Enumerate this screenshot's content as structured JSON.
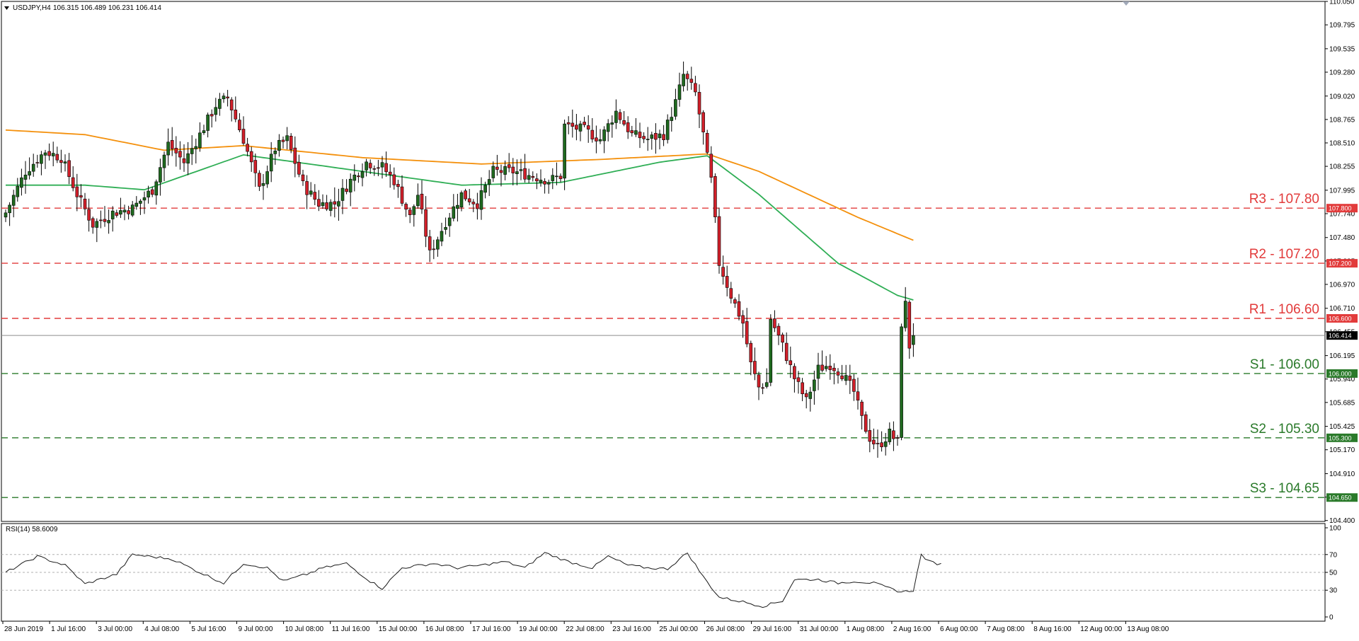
{
  "header": {
    "title": "USDJPY,H4",
    "ohlc": "106.315 106.489 106.231 106.414"
  },
  "colors": {
    "background": "#ffffff",
    "bull": "#1f6a1f",
    "bear": "#d2202a",
    "ma_slow": "#f4900c",
    "ma_fast": "#2fae55",
    "resistance": "#e23b3b",
    "support": "#2a7a2a",
    "price_line": "#8c8c8c",
    "rsi_line": "#1a1a1a"
  },
  "icons": {
    "menu_marker": "triangle-down-icon"
  },
  "chart_data": [
    {
      "type": "candlestick",
      "title": "USDJPY,H4",
      "ylim": [
        104.39,
        110.05
      ],
      "y_ticks": [
        "110.050",
        "109.795",
        "109.535",
        "109.280",
        "109.020",
        "108.765",
        "108.510",
        "108.255",
        "107.995",
        "107.740",
        "107.480",
        "107.225",
        "106.970",
        "106.710",
        "106.455",
        "106.195",
        "105.940",
        "105.685",
        "105.425",
        "105.170",
        "104.910",
        "104.655",
        "104.400"
      ],
      "x_labels": [
        "28 Jun 2019",
        "1 Jul 16:00",
        "3 Jul 00:00",
        "4 Jul 08:00",
        "5 Jul 16:00",
        "9 Jul 00:00",
        "10 Jul 08:00",
        "11 Jul 16:00",
        "15 Jul 00:00",
        "16 Jul 08:00",
        "17 Jul 16:00",
        "19 Jul 00:00",
        "22 Jul 08:00",
        "23 Jul 16:00",
        "25 Jul 00:00",
        "26 Jul 08:00",
        "29 Jul 16:00",
        "31 Jul 00:00",
        "1 Aug 08:00",
        "2 Aug 16:00",
        "6 Aug 00:00",
        "7 Aug 08:00",
        "8 Aug 16:00",
        "12 Aug 00:00",
        "13 Aug 08:00"
      ],
      "current_price": 106.414,
      "current_price_label": "106.414",
      "levels": [
        {
          "name": "R3",
          "value": 107.8,
          "label": "R3 - 107.80",
          "tag": "107.800",
          "kind": "resistance"
        },
        {
          "name": "R2",
          "value": 107.2,
          "label": "R2 - 107.20",
          "tag": "107.200",
          "kind": "resistance"
        },
        {
          "name": "R1",
          "value": 106.6,
          "label": "R1 - 106.60",
          "tag": "106.600",
          "kind": "resistance"
        },
        {
          "name": "S1",
          "value": 106.0,
          "label": "S1 - 106.00",
          "tag": "106.000",
          "kind": "support"
        },
        {
          "name": "S2",
          "value": 105.3,
          "label": "S2 - 105.30",
          "tag": "105.300",
          "kind": "support"
        },
        {
          "name": "S3",
          "value": 104.65,
          "label": "S3 - 104.65",
          "tag": "104.650",
          "kind": "support"
        }
      ],
      "close_anchors": [
        [
          0,
          107.75
        ],
        [
          5,
          108.2
        ],
        [
          10,
          108.42
        ],
        [
          14,
          108.35
        ],
        [
          18,
          107.95
        ],
        [
          22,
          107.62
        ],
        [
          27,
          107.75
        ],
        [
          32,
          107.8
        ],
        [
          37,
          108.0
        ],
        [
          41,
          108.5
        ],
        [
          45,
          108.3
        ],
        [
          49,
          108.6
        ],
        [
          53,
          108.92
        ],
        [
          56,
          109.0
        ],
        [
          60,
          108.55
        ],
        [
          64,
          108.0
        ],
        [
          68,
          108.45
        ],
        [
          71,
          108.55
        ],
        [
          75,
          108.05
        ],
        [
          79,
          107.85
        ],
        [
          83,
          107.85
        ],
        [
          87,
          108.1
        ],
        [
          91,
          108.3
        ],
        [
          95,
          108.25
        ],
        [
          98,
          108.1
        ],
        [
          102,
          107.7
        ],
        [
          104,
          107.95
        ],
        [
          107,
          107.3
        ],
        [
          111,
          107.65
        ],
        [
          115,
          107.95
        ],
        [
          119,
          107.85
        ],
        [
          123,
          108.2
        ],
        [
          128,
          108.2
        ],
        [
          133,
          108.15
        ],
        [
          137,
          108.1
        ],
        [
          140,
          108.15
        ],
        [
          141,
          108.7
        ],
        [
          146,
          108.65
        ],
        [
          150,
          108.55
        ],
        [
          154,
          108.85
        ],
        [
          158,
          108.6
        ],
        [
          162,
          108.55
        ],
        [
          166,
          108.6
        ],
        [
          169,
          108.95
        ],
        [
          171,
          109.25
        ],
        [
          174,
          109.05
        ],
        [
          176,
          108.6
        ],
        [
          178,
          108.1
        ],
        [
          180,
          107.2
        ],
        [
          183,
          106.85
        ],
        [
          186,
          106.55
        ],
        [
          188,
          106.1
        ],
        [
          190,
          105.85
        ],
        [
          192,
          105.9
        ],
        [
          193,
          106.6
        ],
        [
          196,
          106.3
        ],
        [
          199,
          105.95
        ],
        [
          202,
          105.7
        ],
        [
          205,
          106.05
        ],
        [
          208,
          106.1
        ],
        [
          211,
          106.0
        ],
        [
          214,
          105.8
        ],
        [
          216,
          105.5
        ],
        [
          218,
          105.3
        ],
        [
          220,
          105.2
        ],
        [
          223,
          105.35
        ],
        [
          225,
          105.25
        ],
        [
          226,
          106.55
        ],
        [
          227,
          106.75
        ],
        [
          228,
          106.3
        ],
        [
          229,
          106.414
        ]
      ],
      "ma_slow_anchors": [
        [
          0,
          108.65
        ],
        [
          20,
          108.6
        ],
        [
          40,
          108.43
        ],
        [
          60,
          108.48
        ],
        [
          90,
          108.35
        ],
        [
          120,
          108.28
        ],
        [
          150,
          108.33
        ],
        [
          177,
          108.39
        ],
        [
          190,
          108.2
        ],
        [
          215,
          107.7
        ],
        [
          229,
          107.45
        ]
      ],
      "ma_fast_anchors": [
        [
          0,
          108.05
        ],
        [
          20,
          108.05
        ],
        [
          35,
          108.0
        ],
        [
          60,
          108.38
        ],
        [
          90,
          108.2
        ],
        [
          115,
          108.05
        ],
        [
          140,
          108.08
        ],
        [
          165,
          108.3
        ],
        [
          177,
          108.37
        ],
        [
          190,
          107.95
        ],
        [
          210,
          107.2
        ],
        [
          225,
          106.85
        ],
        [
          229,
          106.8
        ]
      ]
    },
    {
      "type": "line",
      "title": "RSI(14) 58.6009",
      "ylim": [
        0,
        100
      ],
      "y_ticks": [
        "100",
        "70",
        "50",
        "30",
        "0"
      ],
      "levels": [
        70,
        50,
        30
      ],
      "current": 58.6009,
      "anchors": [
        [
          0,
          50
        ],
        [
          8,
          68
        ],
        [
          15,
          58
        ],
        [
          20,
          37
        ],
        [
          28,
          48
        ],
        [
          32,
          70
        ],
        [
          36,
          68
        ],
        [
          42,
          65
        ],
        [
          48,
          52
        ],
        [
          55,
          38
        ],
        [
          60,
          60
        ],
        [
          66,
          55
        ],
        [
          70,
          40
        ],
        [
          76,
          48
        ],
        [
          80,
          55
        ],
        [
          86,
          60
        ],
        [
          92,
          40
        ],
        [
          95,
          32
        ],
        [
          100,
          55
        ],
        [
          108,
          60
        ],
        [
          114,
          55
        ],
        [
          120,
          58
        ],
        [
          126,
          62
        ],
        [
          131,
          55
        ],
        [
          136,
          72
        ],
        [
          142,
          62
        ],
        [
          148,
          55
        ],
        [
          152,
          68
        ],
        [
          157,
          58
        ],
        [
          162,
          55
        ],
        [
          167,
          54
        ],
        [
          172,
          72
        ],
        [
          176,
          45
        ],
        [
          180,
          22
        ],
        [
          186,
          17
        ],
        [
          191,
          12
        ],
        [
          196,
          18
        ],
        [
          199,
          42
        ],
        [
          205,
          42
        ],
        [
          210,
          38
        ],
        [
          214,
          40
        ],
        [
          219,
          38
        ],
        [
          223,
          32
        ],
        [
          226,
          28
        ],
        [
          229,
          30
        ],
        [
          231,
          70
        ],
        [
          233,
          62
        ],
        [
          236,
          59
        ]
      ]
    }
  ]
}
